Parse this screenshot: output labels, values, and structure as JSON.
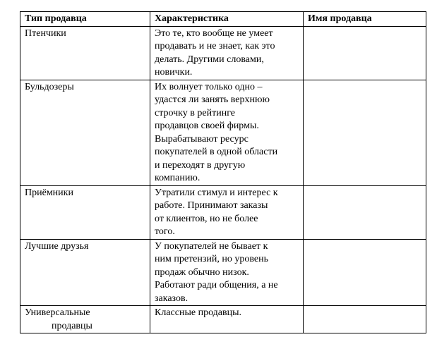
{
  "table": {
    "headers": [
      "Тип продавца",
      "Характеристика",
      "Имя продавца"
    ],
    "rows": [
      {
        "type": [
          "Птенчики"
        ],
        "desc": [
          "Это те, кто вообще не умеет",
          "продавать и не знает, как это",
          "делать. Другими словами,",
          "новички."
        ],
        "name": ""
      },
      {
        "type": [
          "Бульдозеры"
        ],
        "desc": [
          "Их волнует только одно –",
          "удастся ли занять верхнюю",
          "строчку в рейтинге",
          "продавцов своей фирмы.",
          "Вырабатывают ресурс",
          "покупателей в одной области",
          "и переходят в другую",
          "компанию."
        ],
        "name": ""
      },
      {
        "type": [
          "Приёмники"
        ],
        "desc": [
          "Утратили стимул и интерес к",
          "работе. Принимают заказы",
          "от клиентов, но не более",
          "того."
        ],
        "name": ""
      },
      {
        "type": [
          "Лучшие друзья"
        ],
        "desc": [
          "У покупателей не бывает к",
          "ним претензий, но уровень",
          "продаж обычно низок.",
          "Работают ради общения, а не",
          "заказов."
        ],
        "name": ""
      },
      {
        "type": [
          "Универсальные",
          "продавцы"
        ],
        "desc": [
          "Классные продавцы."
        ],
        "name": ""
      }
    ]
  }
}
